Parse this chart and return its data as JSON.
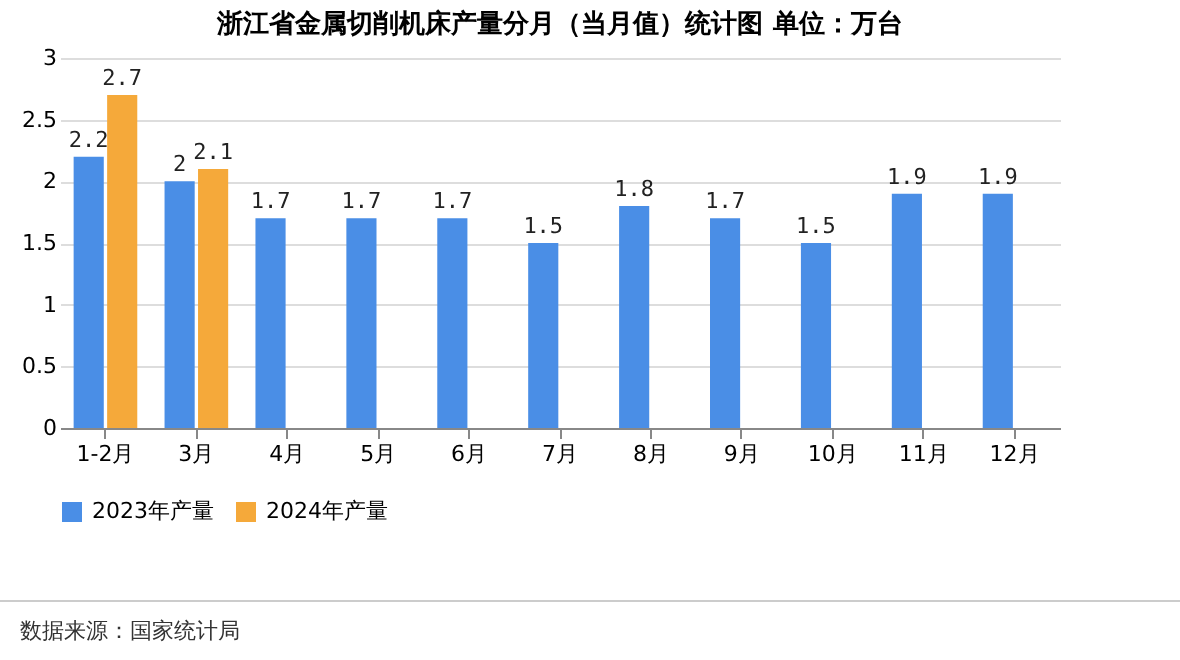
{
  "chart_data": {
    "type": "bar",
    "title": "浙江省金属切削机床产量分月（当月值）统计图 单位：万台",
    "categories": [
      "1-2月",
      "3月",
      "4月",
      "5月",
      "6月",
      "7月",
      "8月",
      "9月",
      "10月",
      "11月",
      "12月"
    ],
    "series": [
      {
        "name": "2023年产量",
        "color": "#4a8ee6",
        "values": [
          2.2,
          2,
          1.7,
          1.7,
          1.7,
          1.5,
          1.8,
          1.7,
          1.5,
          1.9,
          1.9
        ]
      },
      {
        "name": "2024年产量",
        "color": "#f5a93a",
        "values": [
          2.7,
          2.1,
          null,
          null,
          null,
          null,
          null,
          null,
          null,
          null,
          null
        ]
      }
    ],
    "ylim": [
      0,
      3
    ],
    "yticks": [
      0,
      0.5,
      1,
      1.5,
      2,
      2.5,
      3
    ],
    "grid": "y",
    "legend": "bottom",
    "data_labels": true,
    "annotations": [
      "数据来源：国家统计局"
    ]
  }
}
